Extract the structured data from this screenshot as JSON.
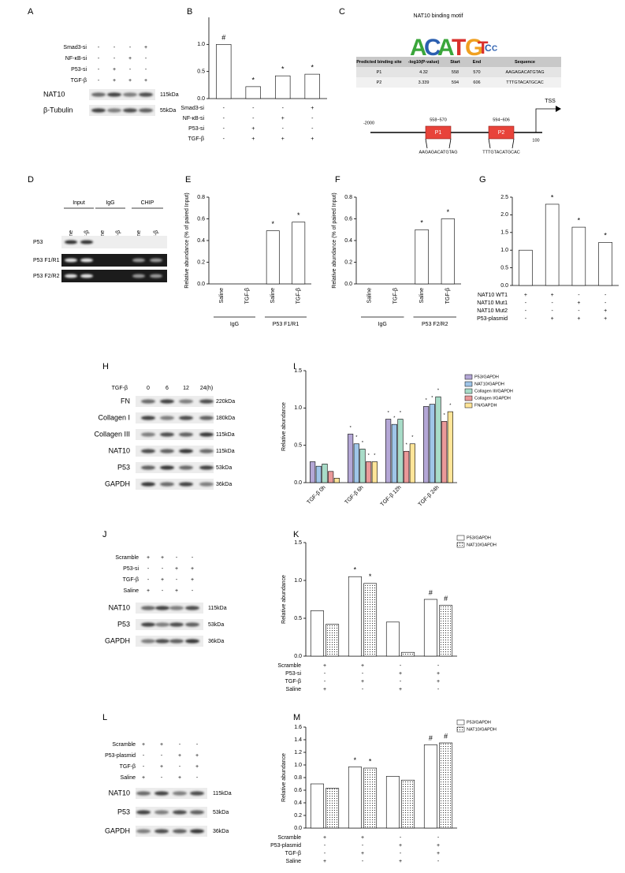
{
  "blots": {
    "A": {
      "label": "A",
      "conditions": [
        {
          "name": "Smad3-si",
          "signs": [
            "-",
            "-",
            "-",
            "+"
          ]
        },
        {
          "name": "NF-κB-si",
          "signs": [
            "-",
            "-",
            "+",
            "-"
          ]
        },
        {
          "name": "P53-si",
          "signs": [
            "-",
            "+",
            "-",
            "-"
          ]
        },
        {
          "name": "TGF-β",
          "signs": [
            "-",
            "+",
            "+",
            "+"
          ]
        }
      ],
      "bands": [
        {
          "name": "NAT10",
          "size": "115kDa"
        },
        {
          "name": "β-Tubulin",
          "size": "55kDa"
        }
      ]
    },
    "H": {
      "label": "H",
      "conditions": [
        {
          "name": "TGF-β",
          "signs": [
            "0",
            "6",
            "12",
            "24(h)"
          ]
        }
      ],
      "bands": [
        {
          "name": "FN",
          "size": "220kDa"
        },
        {
          "name": "Collagen I",
          "size": "180kDa"
        },
        {
          "name": "Collagen III",
          "size": "115kDa"
        },
        {
          "name": "NAT10",
          "size": "115kDa"
        },
        {
          "name": "P53",
          "size": "53kDa"
        },
        {
          "name": "GAPDH",
          "size": "36kDa"
        }
      ]
    },
    "J": {
      "label": "J",
      "conditions": [
        {
          "name": "Scramble",
          "signs": [
            "+",
            "+",
            "-",
            "-"
          ]
        },
        {
          "name": "P53-si",
          "signs": [
            "-",
            "-",
            "+",
            "+"
          ]
        },
        {
          "name": "TGF-β",
          "signs": [
            "-",
            "+",
            "-",
            "+"
          ]
        },
        {
          "name": "Saline",
          "signs": [
            "+",
            "-",
            "+",
            "-"
          ]
        }
      ],
      "bands": [
        {
          "name": "NAT10",
          "size": "115kDa"
        },
        {
          "name": "P53",
          "size": "53kDa"
        },
        {
          "name": "GAPDH",
          "size": "36kDa"
        }
      ]
    },
    "L": {
      "label": "L",
      "conditions": [
        {
          "name": "Scramble",
          "signs": [
            "+",
            "+",
            "-",
            "-"
          ]
        },
        {
          "name": "P53-plasmid",
          "signs": [
            "-",
            "-",
            "+",
            "+"
          ]
        },
        {
          "name": "TGF-β",
          "signs": [
            "-",
            "+",
            "-",
            "+"
          ]
        },
        {
          "name": "Saline",
          "signs": [
            "+",
            "-",
            "+",
            "-"
          ]
        }
      ],
      "bands": [
        {
          "name": "NAT10",
          "size": "115kDa"
        },
        {
          "name": "P53",
          "size": "53kDa"
        },
        {
          "name": "GAPDH",
          "size": "36kDa"
        }
      ]
    }
  },
  "chip": {
    "label": "D",
    "groups": [
      "Input",
      "IgG",
      "CHIP"
    ],
    "lanes": [
      "Saline",
      "TGF-β",
      "Saline",
      "TGF-β",
      "Saline",
      "TGF-β"
    ],
    "rows": [
      "P53",
      "P53  F1/R1",
      "P53  F2/R2"
    ]
  },
  "motif": {
    "label": "C",
    "title": "NAT10 binding motif",
    "logo": [
      "A",
      "C",
      "A",
      "T",
      "G",
      "T",
      "C",
      "C"
    ],
    "table": {
      "header": [
        "Predicted binding site",
        "-log10(P-value)",
        "Start",
        "End",
        "Sequence"
      ],
      "rows": [
        [
          "P1",
          "4.32",
          "558",
          "570",
          "AAGAGACATGTAG"
        ],
        [
          "P2",
          "3.339",
          "594",
          "606",
          "TTTGTACATGCAC"
        ]
      ]
    },
    "diagram": {
      "start": "-2000",
      "end": "100",
      "tss": "TSS",
      "sites": [
        {
          "name": "P1",
          "range": "558~570",
          "sequence": "AAGAGACATGTAG"
        },
        {
          "name": "P2",
          "range": "594~606",
          "sequence": "TTTGTACATGCAC"
        }
      ]
    }
  },
  "chart_data": [
    {
      "type": "bar",
      "label": "B",
      "values": [
        1.0,
        0.22,
        0.42,
        0.45
      ],
      "color": "#ffffff",
      "ylim": [
        0,
        1.5
      ],
      "yticks": [
        {
          "value": 0,
          "label": "0.0"
        },
        0.5,
        {
          "value": 1,
          "label": "1.0"
        }
      ],
      "annotations": [
        "#",
        "*",
        "*",
        "*"
      ],
      "conditions": [
        {
          "name": "Smad3-si",
          "signs": [
            "-",
            "-",
            "-",
            "+"
          ]
        },
        {
          "name": "NF-κB-si",
          "signs": [
            "-",
            "-",
            "+",
            "-"
          ]
        },
        {
          "name": "P53-si",
          "signs": [
            "-",
            "+",
            "-",
            "-"
          ]
        },
        {
          "name": "TGF-β",
          "signs": [
            "-",
            "+",
            "+",
            "+"
          ]
        }
      ]
    },
    {
      "type": "bar",
      "label": "E",
      "ylabel": "Relative abundance (% of paired Input)",
      "categories": [
        "Saline",
        "TGF-β",
        "Saline",
        "TGF-β"
      ],
      "values": [
        0,
        0,
        0.49,
        0.57
      ],
      "color": "#ffffff",
      "ylim": [
        0,
        0.8
      ],
      "yticks": [
        {
          "value": 0,
          "label": "0.0"
        },
        0.2,
        0.4,
        0.6,
        0.8
      ],
      "annotations": [
        null,
        null,
        "*",
        "*"
      ],
      "groups": [
        "IgG",
        "P53 F1/R1"
      ]
    },
    {
      "type": "bar",
      "label": "F",
      "ylabel": "Relative abundance (% of paired Input)",
      "categories": [
        "Saline",
        "TGF-β",
        "Saline",
        "TGF-β"
      ],
      "values": [
        0,
        0,
        0.5,
        0.6
      ],
      "color": "#ffffff",
      "ylim": [
        0,
        0.8
      ],
      "yticks": [
        {
          "value": 0,
          "label": "0.0"
        },
        0.2,
        0.4,
        0.6,
        0.8
      ],
      "annotations": [
        null,
        null,
        "*",
        "*"
      ],
      "groups": [
        "IgG",
        "P53 F2/R2"
      ]
    },
    {
      "type": "bar",
      "label": "G",
      "values": [
        1.0,
        2.3,
        1.65,
        1.22
      ],
      "color": "#ffffff",
      "ylim": [
        0,
        2.5
      ],
      "yticks": [
        {
          "value": 0,
          "label": "0.0"
        },
        0.5,
        {
          "value": 1,
          "label": "1.0"
        },
        1.5,
        {
          "value": 2,
          "label": "2.0"
        },
        2.5
      ],
      "annotations": [
        null,
        "*",
        "*",
        "*"
      ],
      "conditions": [
        {
          "name": "NAT10 WT1",
          "signs": [
            "+",
            "+",
            "-",
            "-"
          ]
        },
        {
          "name": "NAT10 Mut1",
          "signs": [
            "-",
            "-",
            "+",
            "-"
          ]
        },
        {
          "name": "NAT10 Mut2",
          "signs": [
            "-",
            "-",
            "-",
            "+"
          ]
        },
        {
          "name": "P53-plasmid",
          "signs": [
            "-",
            "+",
            "+",
            "+"
          ]
        }
      ]
    },
    {
      "type": "bar",
      "label": "I",
      "ylabel": "Relative abundance",
      "categories": [
        "TGF-β 0h",
        "TGF-β 6h",
        "TGF-β 12h",
        "TGF-β 24h"
      ],
      "ylim": [
        0,
        1.5
      ],
      "yticks": [
        {
          "value": 0,
          "label": "0.0"
        },
        0.5,
        {
          "value": 1,
          "label": "1.0"
        },
        1.5
      ],
      "series": [
        {
          "name": "P53/GAPDH",
          "color": "#b4a7d6",
          "values": [
            0.28,
            0.65,
            0.85,
            1.02
          ],
          "annotations": [
            null,
            "*",
            "*",
            "*"
          ]
        },
        {
          "name": "NAT10/GAPDH",
          "color": "#9fc5e8",
          "values": [
            0.22,
            0.52,
            0.78,
            1.05
          ],
          "annotations": [
            null,
            "*",
            "*",
            "*"
          ]
        },
        {
          "name": "Collagen III/GAPDH",
          "color": "#a8dcc8",
          "values": [
            0.25,
            0.45,
            0.85,
            1.15
          ],
          "annotations": [
            null,
            "*",
            "*",
            "*"
          ]
        },
        {
          "name": "Collagen I/GAPDH",
          "color": "#ea9999",
          "values": [
            0.15,
            0.28,
            0.42,
            0.82
          ],
          "annotations": [
            null,
            "*",
            "*",
            "*"
          ]
        },
        {
          "name": "FN/GAPDH",
          "color": "#ffe599",
          "values": [
            0.06,
            0.28,
            0.52,
            0.95
          ],
          "annotations": [
            null,
            "*",
            "*",
            "*"
          ]
        }
      ]
    },
    {
      "type": "bar",
      "label": "K",
      "ylabel": "Relative abundance",
      "ylim": [
        0,
        1.5
      ],
      "yticks": [
        {
          "value": 0,
          "label": "0.0"
        },
        0.5,
        {
          "value": 1,
          "label": "1.0"
        },
        1.5
      ],
      "series": [
        {
          "name": "P53/GAPDH",
          "color": "#ffffff",
          "values": [
            0.6,
            1.05,
            0.45,
            0.75
          ],
          "annotations": [
            null,
            "*",
            null,
            "#"
          ]
        },
        {
          "name": "NAT10/GAPDH",
          "color": "#ffffff",
          "pattern": "dots",
          "values": [
            0.42,
            0.96,
            0.05,
            0.67
          ],
          "annotations": [
            null,
            "*",
            null,
            "#"
          ]
        }
      ],
      "conditions": [
        {
          "name": "Scramble",
          "signs": [
            "+",
            "+",
            "-",
            "-"
          ]
        },
        {
          "name": "P53-si",
          "signs": [
            "-",
            "-",
            "+",
            "+"
          ]
        },
        {
          "name": "TGF-β",
          "signs": [
            "-",
            "+",
            "-",
            "+"
          ]
        },
        {
          "name": "Saline",
          "signs": [
            "+",
            "-",
            "+",
            "-"
          ]
        }
      ]
    },
    {
      "type": "bar",
      "label": "M",
      "ylabel": "Relative abundance",
      "ylim": [
        0,
        1.6
      ],
      "yticks": [
        {
          "value": 0,
          "label": "0.0"
        },
        0.2,
        0.4,
        0.6,
        0.8,
        {
          "value": 1,
          "label": "1.0"
        },
        1.2,
        1.4,
        1.6
      ],
      "series": [
        {
          "name": "P53/GAPDH",
          "color": "#ffffff",
          "values": [
            0.7,
            0.97,
            0.82,
            1.32
          ],
          "annotations": [
            null,
            "*",
            null,
            "#"
          ]
        },
        {
          "name": "NAT10/GAPDH",
          "color": "#ffffff",
          "pattern": "dots",
          "values": [
            0.63,
            0.95,
            0.76,
            1.35
          ],
          "annotations": [
            null,
            "*",
            null,
            "#"
          ]
        }
      ],
      "conditions": [
        {
          "name": "Scramble",
          "signs": [
            "+",
            "+",
            "-",
            "-"
          ]
        },
        {
          "name": "P53-plasmid",
          "signs": [
            "-",
            "-",
            "+",
            "+"
          ]
        },
        {
          "name": "TGF-β",
          "signs": [
            "-",
            "+",
            "-",
            "+"
          ]
        },
        {
          "name": "Saline",
          "signs": [
            "+",
            "-",
            "+",
            "-"
          ]
        }
      ]
    }
  ]
}
